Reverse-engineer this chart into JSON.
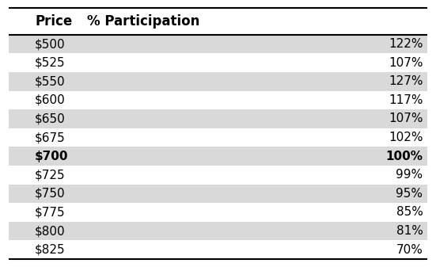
{
  "headers": [
    "Price",
    "% Participation"
  ],
  "rows": [
    [
      "$500",
      "122%"
    ],
    [
      "$525",
      "107%"
    ],
    [
      "$550",
      "127%"
    ],
    [
      "$600",
      "117%"
    ],
    [
      "$650",
      "107%"
    ],
    [
      "$675",
      "102%"
    ],
    [
      "$700",
      "100%"
    ],
    [
      "$725",
      "99%"
    ],
    [
      "$750",
      "95%"
    ],
    [
      "$775",
      "85%"
    ],
    [
      "$800",
      "81%"
    ],
    [
      "$825",
      "70%"
    ]
  ],
  "bold_row_index": 6,
  "shaded_row_indices": [
    0,
    2,
    4,
    6,
    8,
    10
  ],
  "shaded_color": "#d9d9d9",
  "white_color": "#ffffff",
  "text_color": "#000000",
  "border_color": "#000000",
  "fig_bg": "#ffffff",
  "font_size": 11,
  "header_font_size": 12
}
